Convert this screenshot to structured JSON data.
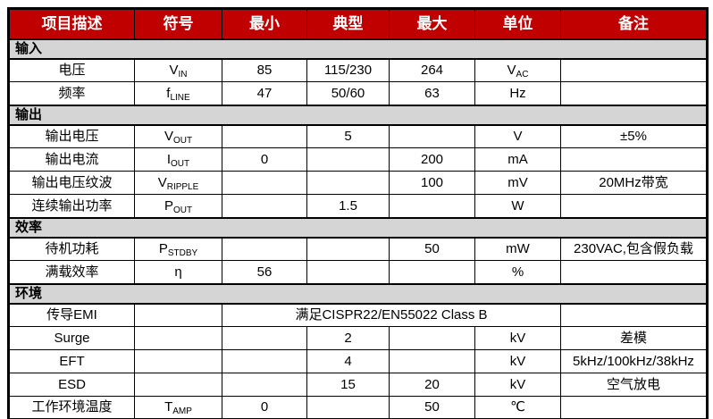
{
  "table": {
    "columns": [
      "项目描述",
      "符号",
      "最小",
      "典型",
      "最大",
      "单位",
      "备注"
    ],
    "colors": {
      "header_bg": "#C00000",
      "header_text": "#FFFFFF",
      "section_bg": "#D5D5D5",
      "border": "#000000",
      "text": "#000000"
    },
    "rows": [
      {
        "type": "section",
        "label": "输入"
      },
      {
        "type": "data",
        "label": "电压",
        "symbol": {
          "base": "V",
          "sub": "IN"
        },
        "min": "85",
        "typ": "115/230",
        "max": "264",
        "unit": {
          "base": "V",
          "sub": "AC"
        },
        "note": ""
      },
      {
        "type": "data",
        "label": "频率",
        "symbol": {
          "base": "f",
          "sub": "LINE"
        },
        "min": "47",
        "typ": "50/60",
        "max": "63",
        "unit": {
          "base": "Hz",
          "sub": ""
        },
        "note": ""
      },
      {
        "type": "section",
        "label": "输出"
      },
      {
        "type": "data",
        "label": "输出电压",
        "symbol": {
          "base": "V",
          "sub": "OUT"
        },
        "min": "",
        "typ": "5",
        "max": "",
        "unit": {
          "base": "V",
          "sub": ""
        },
        "note": "±5%"
      },
      {
        "type": "data",
        "label": "输出电流",
        "symbol": {
          "base": "I",
          "sub": "OUT"
        },
        "min": "0",
        "typ": "",
        "max": "200",
        "unit": {
          "base": "mA",
          "sub": ""
        },
        "note": ""
      },
      {
        "type": "data",
        "label": "输出电压纹波",
        "symbol": {
          "base": "V",
          "sub": "RIPPLE"
        },
        "min": "",
        "typ": "",
        "max": "100",
        "unit": {
          "base": "mV",
          "sub": ""
        },
        "note": "20MHz带宽"
      },
      {
        "type": "data",
        "label": "连续输出功率",
        "symbol": {
          "base": "P",
          "sub": "OUT"
        },
        "min": "",
        "typ": "1.5",
        "max": "",
        "unit": {
          "base": "W",
          "sub": ""
        },
        "note": ""
      },
      {
        "type": "section",
        "label": "效率"
      },
      {
        "type": "data",
        "label": "待机功耗",
        "symbol": {
          "base": "P",
          "sub": "STDBY"
        },
        "min": "",
        "typ": "",
        "max": "50",
        "unit": {
          "base": "mW",
          "sub": ""
        },
        "note": "230VAC,包含假负载"
      },
      {
        "type": "data",
        "label": "满载效率",
        "symbol": {
          "base": "η",
          "sub": ""
        },
        "min": "56",
        "typ": "",
        "max": "",
        "unit": {
          "base": "%",
          "sub": ""
        },
        "note": ""
      },
      {
        "type": "section",
        "label": "环境"
      },
      {
        "type": "data",
        "label": "传导EMI",
        "symbol": {
          "base": "",
          "sub": ""
        },
        "merged": "满足CISPR22/EN55022 Class B",
        "note": ""
      },
      {
        "type": "data",
        "label": "Surge",
        "symbol": {
          "base": "",
          "sub": ""
        },
        "min": "",
        "typ": "2",
        "max": "",
        "unit": {
          "base": "kV",
          "sub": ""
        },
        "note": "差模"
      },
      {
        "type": "data",
        "label": "EFT",
        "symbol": {
          "base": "",
          "sub": ""
        },
        "min": "",
        "typ": "4",
        "max": "",
        "unit": {
          "base": "kV",
          "sub": ""
        },
        "note": "5kHz/100kHz/38kHz"
      },
      {
        "type": "data",
        "label": "ESD",
        "symbol": {
          "base": "",
          "sub": ""
        },
        "min": "",
        "typ": "15",
        "max": "20",
        "unit": {
          "base": "kV",
          "sub": ""
        },
        "note": "空气放电"
      },
      {
        "type": "data",
        "label": "工作环境温度",
        "symbol": {
          "base": "T",
          "sub": "AMP"
        },
        "min": "0",
        "typ": "",
        "max": "50",
        "unit": {
          "base": "℃",
          "sub": ""
        },
        "note": ""
      }
    ]
  }
}
